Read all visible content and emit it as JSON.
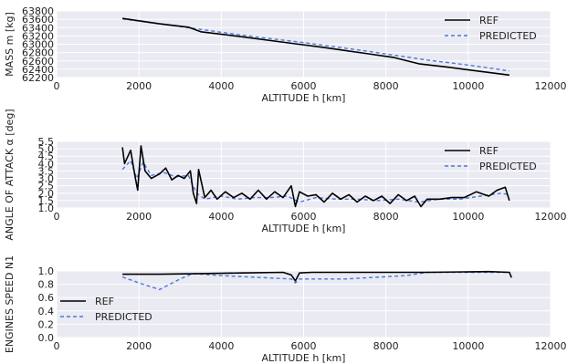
{
  "chart_data": [
    {
      "type": "line",
      "xlabel": "ALTITUDE h [km]",
      "ylabel": "MASS m [kg]",
      "xlim": [
        0,
        12000
      ],
      "ylim": [
        62200,
        63800
      ],
      "xticks": [
        0,
        2000,
        4000,
        6000,
        8000,
        10000,
        12000
      ],
      "yticks": [
        62200,
        62400,
        62600,
        62800,
        63000,
        63200,
        63400,
        63600,
        63800
      ],
      "grid": true,
      "legend_position": "top-right",
      "series": [
        {
          "name": "REF",
          "color": "#000000",
          "style": "solid",
          "x": [
            1600,
            2500,
            3200,
            3500,
            4500,
            5800,
            6500,
            7500,
            8200,
            8800,
            9500,
            10200,
            11000
          ],
          "y": [
            63620,
            63490,
            63410,
            63300,
            63180,
            63010,
            62920,
            62780,
            62680,
            62530,
            62450,
            62360,
            62260
          ]
        },
        {
          "name": "PREDICTED",
          "color": "#4a78d8",
          "style": "dashed",
          "x": [
            1600,
            3200,
            4500,
            6000,
            7500,
            9000,
            10000,
            11000
          ],
          "y": [
            63610,
            63400,
            63220,
            63040,
            62840,
            62620,
            62500,
            62360
          ]
        }
      ]
    },
    {
      "type": "line",
      "xlabel": "ALTITUDE h [km]",
      "ylabel": "ANGLE OF ATTACK α [deg]",
      "xlim": [
        0,
        12000
      ],
      "ylim": [
        1.0,
        5.5
      ],
      "xticks": [
        0,
        2000,
        4000,
        6000,
        8000,
        10000,
        12000
      ],
      "yticks": [
        1.0,
        1.5,
        2.0,
        2.5,
        3.0,
        3.5,
        4.0,
        4.5,
        5.0,
        5.5
      ],
      "grid": true,
      "legend_position": "top-right",
      "series": [
        {
          "name": "REF",
          "color": "#000000",
          "style": "solid",
          "x": [
            1600,
            1650,
            1800,
            1900,
            1970,
            2050,
            2150,
            2300,
            2500,
            2650,
            2800,
            2950,
            3100,
            3250,
            3320,
            3400,
            3450,
            3600,
            3750,
            3900,
            4100,
            4300,
            4500,
            4700,
            4900,
            5100,
            5300,
            5500,
            5700,
            5800,
            5900,
            6100,
            6300,
            6500,
            6700,
            6900,
            7100,
            7300,
            7500,
            7700,
            7900,
            8100,
            8300,
            8500,
            8700,
            8850,
            9000,
            9300,
            9600,
            9900,
            10200,
            10500,
            10700,
            10900,
            11000
          ],
          "y": [
            5.1,
            4.0,
            4.9,
            3.2,
            2.2,
            5.2,
            3.5,
            3.0,
            3.3,
            3.7,
            2.9,
            3.2,
            3.0,
            3.5,
            2.0,
            1.3,
            3.6,
            1.7,
            2.2,
            1.6,
            2.1,
            1.7,
            2.0,
            1.6,
            2.2,
            1.6,
            2.1,
            1.7,
            2.5,
            1.1,
            2.1,
            1.8,
            1.9,
            1.4,
            2.0,
            1.6,
            1.9,
            1.4,
            1.8,
            1.5,
            1.8,
            1.3,
            1.9,
            1.5,
            1.8,
            1.1,
            1.6,
            1.6,
            1.7,
            1.7,
            2.1,
            1.8,
            2.2,
            2.4,
            1.5
          ]
        },
        {
          "name": "PREDICTED",
          "color": "#4a78d8",
          "style": "dashed",
          "x": [
            1600,
            1800,
            1950,
            2100,
            2300,
            2600,
            2900,
            3200,
            3400,
            3600,
            4000,
            4400,
            4800,
            5200,
            5600,
            5900,
            6300,
            6800,
            7300,
            7800,
            8300,
            8800,
            9300,
            9800,
            10300,
            10800,
            11000
          ],
          "y": [
            3.6,
            4.2,
            3.0,
            4.1,
            3.2,
            3.4,
            3.1,
            3.2,
            2.0,
            1.6,
            1.8,
            1.6,
            1.7,
            1.7,
            1.8,
            1.4,
            1.7,
            1.6,
            1.6,
            1.5,
            1.6,
            1.4,
            1.6,
            1.6,
            1.8,
            2.0,
            1.9
          ]
        }
      ]
    },
    {
      "type": "line",
      "xlabel": "ALTITUDE h [km]",
      "ylabel": "ENGINES SPEED N1",
      "xlim": [
        0,
        12000
      ],
      "ylim": [
        0.0,
        1.0
      ],
      "xticks": [
        0,
        2000,
        4000,
        6000,
        8000,
        10000,
        12000
      ],
      "yticks": [
        0.0,
        0.2,
        0.4,
        0.6,
        0.8,
        1.0
      ],
      "grid": true,
      "legend_position": "lower-left",
      "series": [
        {
          "name": "REF",
          "color": "#000000",
          "style": "solid",
          "x": [
            1600,
            2500,
            3500,
            4500,
            5500,
            5700,
            5800,
            5900,
            6200,
            7500,
            9000,
            10500,
            11000,
            11050
          ],
          "y": [
            0.95,
            0.95,
            0.96,
            0.97,
            0.98,
            0.94,
            0.85,
            0.97,
            0.98,
            0.98,
            0.98,
            0.99,
            0.98,
            0.9
          ]
        },
        {
          "name": "PREDICTED",
          "color": "#4a78d8",
          "style": "dashed",
          "x": [
            1600,
            2000,
            2500,
            3000,
            3300,
            4000,
            5000,
            5700,
            5800,
            5900,
            7000,
            8500,
            9000,
            10000,
            11000
          ],
          "y": [
            0.91,
            0.82,
            0.72,
            0.88,
            0.96,
            0.93,
            0.9,
            0.88,
            0.82,
            0.88,
            0.88,
            0.93,
            0.98,
            0.98,
            0.98
          ]
        }
      ]
    }
  ]
}
